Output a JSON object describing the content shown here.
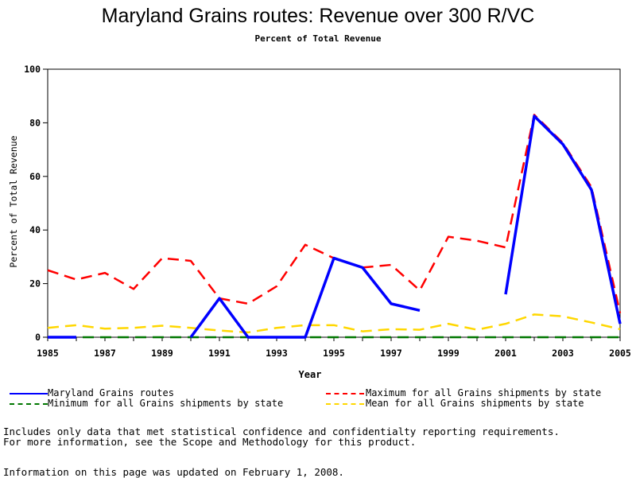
{
  "title": "Maryland Grains routes: Revenue over 300 R/VC",
  "subtitle": "Percent of Total Revenue",
  "notes": {
    "line1": "Includes only data that met statistical confidence and confidentialty reporting requirements.",
    "line2": "For more information, see the Scope and Methodology for this product.",
    "line3": "Information on this page was updated on February 1, 2008."
  },
  "chart_data": {
    "type": "line",
    "title": "Maryland Grains routes: Revenue over 300 R/VC",
    "subtitle": "Percent of Total Revenue",
    "xlabel": "Year",
    "ylabel": "Percent of Total Revenue",
    "xlim": [
      1985,
      2005
    ],
    "ylim": [
      0,
      100
    ],
    "xticks": [
      "1985",
      "1987",
      "1989",
      "1991",
      "1993",
      "1995",
      "1997",
      "1999",
      "2001",
      "2003",
      "2005"
    ],
    "yticks": [
      "0",
      "20",
      "40",
      "60",
      "80",
      "100"
    ],
    "x": [
      1985,
      1986,
      1987,
      1988,
      1989,
      1990,
      1991,
      1992,
      1993,
      1994,
      1995,
      1996,
      1997,
      1998,
      1999,
      2000,
      2001,
      2002,
      2003,
      2004,
      2005
    ],
    "series": [
      {
        "name": "Maryland Grains routes",
        "color": "#0000ff",
        "style": "solid",
        "values": [
          0,
          0,
          null,
          null,
          null,
          0,
          14.5,
          0,
          0,
          0,
          29.5,
          26,
          12.5,
          10,
          null,
          null,
          16,
          82.5,
          72,
          55,
          5
        ]
      },
      {
        "name": "Maximum for all Grains shipments by state",
        "color": "#ff0000",
        "style": "dashed",
        "values": [
          25,
          21.5,
          24,
          18,
          29.5,
          28.5,
          14.5,
          12.5,
          19,
          34.5,
          29.5,
          26,
          27,
          17.5,
          37.5,
          36,
          33.5,
          83,
          72.5,
          56,
          9
        ]
      },
      {
        "name": "Minimum for all Grains shipments by state",
        "color": "#007700",
        "style": "dashed",
        "values": [
          0,
          0,
          0,
          0,
          0,
          0,
          0,
          0,
          0,
          0,
          0,
          0,
          0,
          0,
          0,
          0,
          0,
          0,
          0,
          0,
          0
        ]
      },
      {
        "name": "Mean for all Grains shipments by state",
        "color": "#ffd700",
        "style": "dashed",
        "values": [
          3.5,
          4.5,
          3.2,
          3.5,
          4.3,
          3.5,
          2.5,
          1.8,
          3.5,
          4.5,
          4.5,
          2.2,
          3.0,
          2.8,
          5.0,
          2.8,
          5.0,
          8.5,
          7.8,
          5.5,
          3.0
        ]
      }
    ]
  }
}
